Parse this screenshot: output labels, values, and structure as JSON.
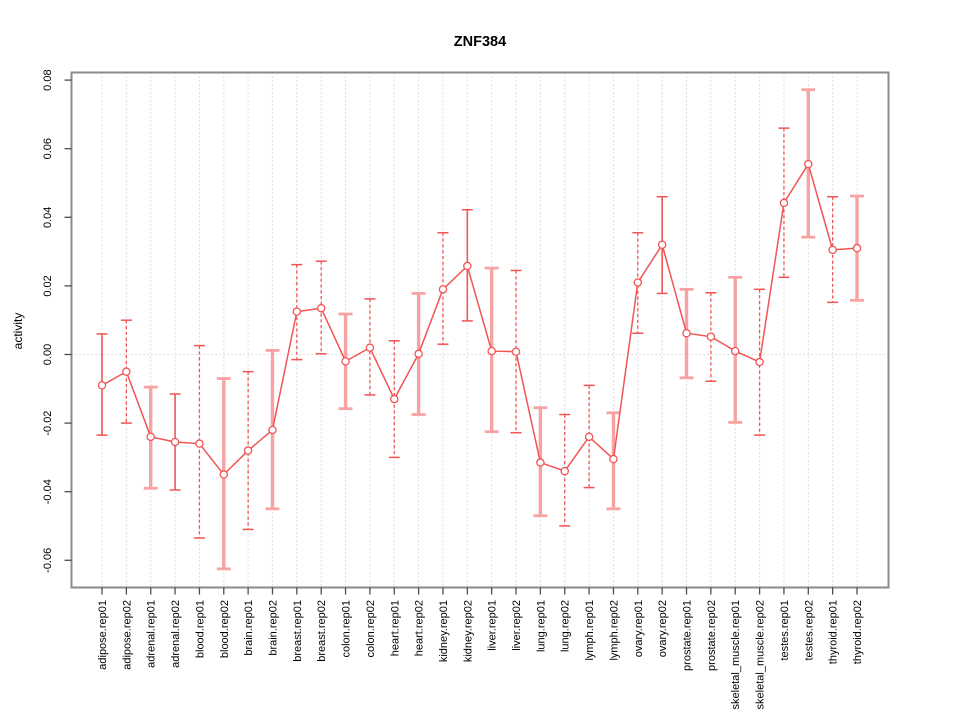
{
  "chart_data": {
    "type": "line",
    "title": "ZNF384",
    "xlabel": "",
    "ylabel": "activity",
    "ylim": [
      -0.065,
      0.082
    ],
    "yticks": [
      0.08,
      0.06,
      0.04,
      0.02,
      0.0,
      -0.02,
      -0.04,
      -0.06
    ],
    "ytick_labels": [
      "0.08",
      "0.06",
      "0.04",
      "0.02",
      "0.00",
      "-0.02",
      "-0.04",
      "-0.06"
    ],
    "grid": {
      "vertical_dotted_per_category": true,
      "horizontal_zero_line_dotted": true
    },
    "legend": "none",
    "marker": "open-circle",
    "categories": [
      "adipose.rep01",
      "adipose.rep02",
      "adrenal.rep01",
      "adrenal.rep02",
      "blood.rep01",
      "blood.rep02",
      "brain.rep01",
      "brain.rep02",
      "breast.rep01",
      "breast.rep02",
      "colon.rep01",
      "colon.rep02",
      "heart.rep01",
      "heart.rep02",
      "kidney.rep01",
      "kidney.rep02",
      "liver.rep01",
      "liver.rep02",
      "lung.rep01",
      "lung.rep02",
      "lymph.rep01",
      "lymph.rep02",
      "ovary.rep01",
      "ovary.rep02",
      "prostate.rep01",
      "prostate.rep02",
      "skeletal_muscle.rep01",
      "skeletal_muscle.rep02",
      "testes.rep01",
      "testes.rep02",
      "thyroid.rep01",
      "thyroid.rep02"
    ],
    "series": [
      {
        "name": "activity",
        "values": [
          -0.009,
          -0.005,
          -0.024,
          -0.0255,
          -0.026,
          -0.035,
          -0.028,
          -0.022,
          0.0125,
          0.0135,
          -0.002,
          0.002,
          -0.013,
          0.0002,
          0.019,
          0.0258,
          0.001,
          0.0008,
          -0.0315,
          -0.034,
          -0.024,
          -0.0305,
          0.021,
          0.032,
          0.0062,
          0.0052,
          0.001,
          -0.0022,
          0.0442,
          0.0555,
          0.0305,
          0.031
        ],
        "ci_low": [
          -0.0235,
          -0.02,
          -0.039,
          -0.0395,
          -0.0535,
          -0.0625,
          -0.051,
          -0.045,
          -0.0015,
          0.0002,
          -0.0158,
          -0.0118,
          -0.03,
          -0.0175,
          0.003,
          0.0098,
          -0.0225,
          -0.0228,
          -0.047,
          -0.05,
          -0.0388,
          -0.045,
          0.0062,
          0.0178,
          -0.0068,
          -0.0078,
          -0.0198,
          -0.0235,
          0.0225,
          0.0342,
          0.0152,
          0.0158
        ],
        "ci_high": [
          0.006,
          0.01,
          -0.0095,
          -0.0115,
          0.0026,
          -0.007,
          -0.005,
          0.0012,
          0.0262,
          0.0272,
          0.0118,
          0.0162,
          0.004,
          0.0178,
          0.0355,
          0.0422,
          0.0252,
          0.0245,
          -0.0155,
          -0.0175,
          -0.009,
          -0.017,
          0.0355,
          0.046,
          0.019,
          0.018,
          0.0225,
          0.019,
          0.066,
          0.0772,
          0.046,
          0.0462
        ],
        "bar_styles": [
          "solid",
          "dashed",
          "thick",
          "solid",
          "dashed",
          "thick",
          "dashed",
          "thick",
          "dashed",
          "dashed",
          "thick",
          "dashed",
          "dashed",
          "thick",
          "dashed",
          "solid",
          "thick",
          "dashed",
          "thick",
          "dashed",
          "dashed",
          "thick",
          "dashed",
          "solid",
          "thick",
          "dashed",
          "thick",
          "dashed",
          "dashed",
          "thick",
          "dashed",
          "thick"
        ]
      }
    ],
    "colors": {
      "line": "#f15454",
      "marker": "#f15454",
      "error_bar_thin": "#f15454",
      "error_bar_thick": "#f8a3a3",
      "grid": "#d4d4d4",
      "plot_border": "#8a8a8a",
      "tick": "#4d4d4d",
      "text": "#000000",
      "background": "#ffffff"
    }
  }
}
